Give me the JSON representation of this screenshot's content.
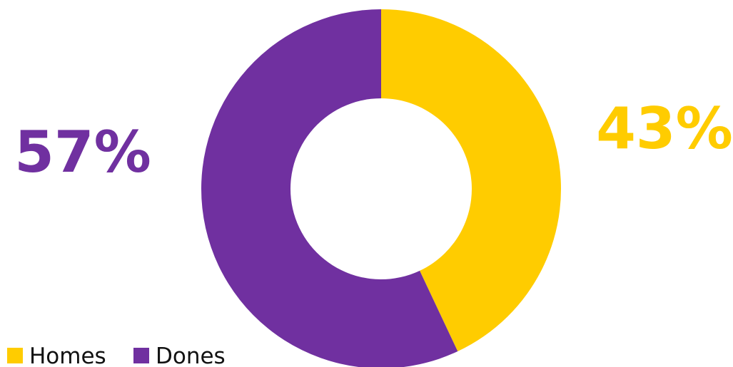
{
  "chart_data": {
    "type": "pie",
    "variant": "donut",
    "title": "",
    "categories": [
      "Homes",
      "Dones"
    ],
    "values": [
      43,
      57
    ],
    "unit": "%",
    "colors": [
      "#FFCC00",
      "#7030A0"
    ],
    "data_labels": [
      "43%",
      "57%"
    ],
    "start_angle_deg": 0,
    "direction": "clockwise",
    "legend": {
      "position": "bottom-left",
      "entries": [
        "Homes",
        "Dones"
      ]
    }
  }
}
